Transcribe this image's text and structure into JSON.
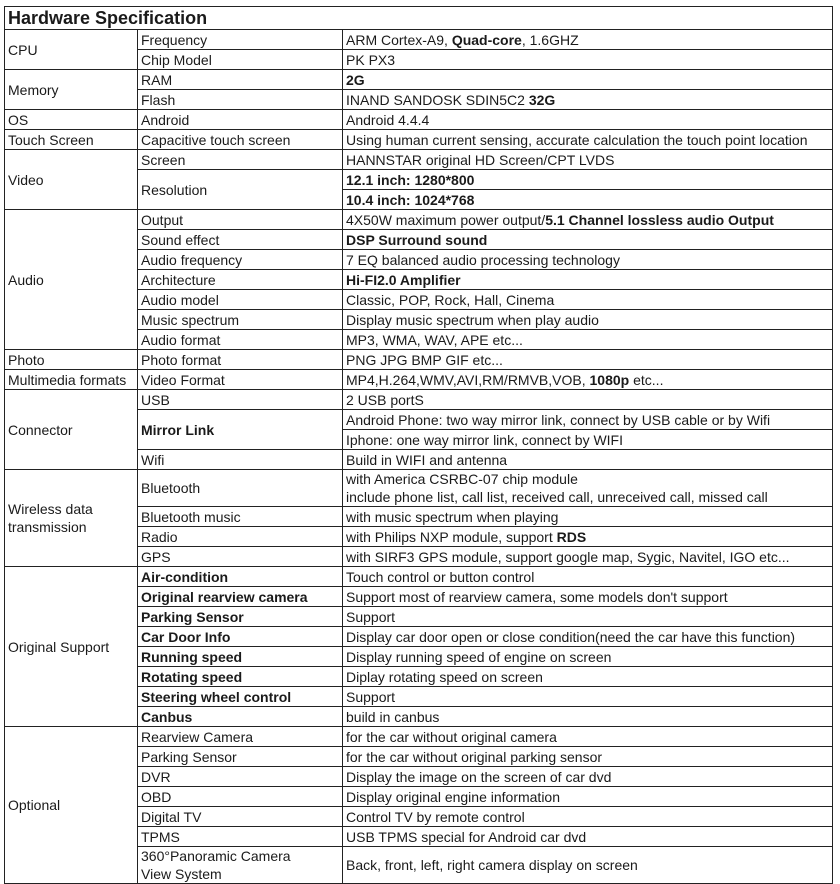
{
  "title": "Hardware Specification",
  "groups": [
    {
      "category": [
        "CPU"
      ],
      "rows": [
        {
          "label": [
            "Frequency"
          ],
          "cells": [
            [
              [
                {
                  "t": "ARM  Cortex-A9, "
                },
                {
                  "t": "Quad-core",
                  "b": true
                },
                {
                  "t": ", 1.6GHZ"
                }
              ]
            ]
          ]
        },
        {
          "label": [
            "Chip Model"
          ],
          "cells": [
            [
              [
                {
                  "t": "PK  PX3"
                }
              ]
            ]
          ]
        }
      ]
    },
    {
      "category": [
        "Memory"
      ],
      "rows": [
        {
          "label": [
            "RAM"
          ],
          "cells": [
            [
              [
                {
                  "t": "2G",
                  "b": true
                }
              ]
            ]
          ]
        },
        {
          "label": [
            "Flash"
          ],
          "cells": [
            [
              [
                {
                  "t": "INAND SANDOSK SDIN5C2 "
                },
                {
                  "t": "32G",
                  "b": true
                }
              ]
            ]
          ]
        }
      ]
    },
    {
      "category": [
        "OS"
      ],
      "rows": [
        {
          "label": [
            "Android"
          ],
          "cells": [
            [
              [
                {
                  "t": "Android 4.4.4"
                }
              ]
            ]
          ]
        }
      ]
    },
    {
      "category": [
        "Touch Screen"
      ],
      "rows": [
        {
          "label": [
            "Capacitive touch screen"
          ],
          "cells": [
            [
              [
                {
                  "t": "Using human current sensing, accurate calculation the touch point location"
                }
              ]
            ]
          ]
        }
      ]
    },
    {
      "category": [
        "Video"
      ],
      "rows": [
        {
          "label": [
            "Screen"
          ],
          "cells": [
            [
              [
                {
                  "t": "HANNSTAR original HD Screen/CPT LVDS"
                }
              ]
            ]
          ]
        },
        {
          "label": [
            "Resolution"
          ],
          "cells": [
            [
              [
                {
                  "t": "12.1 inch: 1280*800",
                  "b": true
                }
              ]
            ],
            [
              [
                {
                  "t": "10.4 inch: 1024*768",
                  "b": true
                }
              ]
            ]
          ]
        }
      ]
    },
    {
      "category": [
        "Audio"
      ],
      "rows": [
        {
          "label": [
            "Output"
          ],
          "cells": [
            [
              [
                {
                  "t": "4X50W maximum power output/"
                },
                {
                  "t": "5.1 Channel lossless audio Output",
                  "b": true
                }
              ]
            ]
          ]
        },
        {
          "label": [
            "Sound effect"
          ],
          "cells": [
            [
              [
                {
                  "t": "DSP Surround sound",
                  "b": true
                }
              ]
            ]
          ]
        },
        {
          "label": [
            "Audio frequency"
          ],
          "cells": [
            [
              [
                {
                  "t": "7 EQ balanced audio processing technology"
                }
              ]
            ]
          ]
        },
        {
          "label": [
            "Architecture"
          ],
          "cells": [
            [
              [
                {
                  "t": "Hi-FI2.0 Amplifier",
                  "b": true
                }
              ]
            ]
          ]
        },
        {
          "label": [
            "Audio model"
          ],
          "cells": [
            [
              [
                {
                  "t": "Classic, POP, Rock, Hall, Cinema"
                }
              ]
            ]
          ]
        },
        {
          "label": [
            "Music spectrum"
          ],
          "cells": [
            [
              [
                {
                  "t": "Display music spectrum when play audio"
                }
              ]
            ]
          ]
        },
        {
          "label": [
            "Audio format"
          ],
          "cells": [
            [
              [
                {
                  "t": "MP3, WMA, WAV, APE etc..."
                }
              ]
            ]
          ]
        }
      ]
    },
    {
      "category": [
        "Photo"
      ],
      "rows": [
        {
          "label": [
            "Photo format"
          ],
          "cells": [
            [
              [
                {
                  "t": "PNG JPG BMP GIF etc..."
                }
              ]
            ]
          ]
        }
      ]
    },
    {
      "category": [
        "Multimedia formats"
      ],
      "rows": [
        {
          "label": [
            "Video Format"
          ],
          "cells": [
            [
              [
                {
                  "t": "MP4,H.264,WMV,AVI,RM/RMVB,VOB, "
                },
                {
                  "t": "1080p",
                  "b": true
                },
                {
                  "t": " etc..."
                }
              ]
            ]
          ]
        }
      ]
    },
    {
      "category": [
        "Connector"
      ],
      "rows": [
        {
          "label": [
            "USB"
          ],
          "cells": [
            [
              [
                {
                  "t": "2 USB portS"
                }
              ]
            ]
          ]
        },
        {
          "label": [
            "Mirror Link"
          ],
          "label_bold": true,
          "cells": [
            [
              [
                {
                  "t": "Android Phone: two way mirror link, connect by USB cable or by Wifi"
                }
              ]
            ],
            [
              [
                {
                  "t": "Iphone: one way mirror link, connect by WIFI"
                }
              ]
            ]
          ]
        },
        {
          "label": [
            "Wifi"
          ],
          "cells": [
            [
              [
                {
                  "t": "Build in WIFI and antenna"
                }
              ]
            ]
          ]
        }
      ]
    },
    {
      "category": [
        "Wireless data",
        "transmission"
      ],
      "rows": [
        {
          "label": [
            "Bluetooth"
          ],
          "cells": [
            [
              [
                {
                  "t": "with America CSRBC-07 chip  module"
                }
              ],
              [
                {
                  "t": "include phone list, call list, received call, unreceived call, missed call"
                }
              ]
            ]
          ]
        },
        {
          "label": [
            "Bluetooth music"
          ],
          "cells": [
            [
              [
                {
                  "t": "with music spectrum when playing"
                }
              ]
            ]
          ]
        },
        {
          "label": [
            "Radio"
          ],
          "cells": [
            [
              [
                {
                  "t": "with Philips NXP module, support "
                },
                {
                  "t": "RDS",
                  "b": true
                }
              ]
            ]
          ]
        },
        {
          "label": [
            "GPS"
          ],
          "cells": [
            [
              [
                {
                  "t": "with SIRF3 GPS module, support google map, Sygic, Navitel, IGO etc..."
                }
              ]
            ]
          ]
        }
      ]
    },
    {
      "category": [
        "Original Support"
      ],
      "rows": [
        {
          "label": [
            "Air-condition"
          ],
          "label_bold": true,
          "cells": [
            [
              [
                {
                  "t": "Touch control or button control"
                }
              ]
            ]
          ]
        },
        {
          "label": [
            "Original rearview camera"
          ],
          "label_bold": true,
          "cells": [
            [
              [
                {
                  "t": "Support most of rearview camera, some models don't support"
                }
              ]
            ]
          ]
        },
        {
          "label": [
            "Parking Sensor"
          ],
          "label_bold": true,
          "cells": [
            [
              [
                {
                  "t": "Support"
                }
              ]
            ]
          ]
        },
        {
          "label": [
            "Car Door Info"
          ],
          "label_bold": true,
          "cells": [
            [
              [
                {
                  "t": "Display car door open or close condition(need the car have this function)"
                }
              ]
            ]
          ]
        },
        {
          "label": [
            "Running speed"
          ],
          "label_bold": true,
          "cells": [
            [
              [
                {
                  "t": "Display running speed of engine on screen"
                }
              ]
            ]
          ]
        },
        {
          "label": [
            "Rotating speed"
          ],
          "label_bold": true,
          "cells": [
            [
              [
                {
                  "t": "Diplay  rotating speed on screen"
                }
              ]
            ]
          ]
        },
        {
          "label": [
            "Steering wheel control"
          ],
          "label_bold": true,
          "cells": [
            [
              [
                {
                  "t": "Support"
                }
              ]
            ]
          ]
        },
        {
          "label": [
            "Canbus"
          ],
          "label_bold": true,
          "cells": [
            [
              [
                {
                  "t": "build in canbus"
                }
              ]
            ]
          ]
        }
      ]
    },
    {
      "category": [
        "Optional"
      ],
      "rows": [
        {
          "label": [
            "Rearview Camera"
          ],
          "cells": [
            [
              [
                {
                  "t": "for the car without original camera"
                }
              ]
            ]
          ]
        },
        {
          "label": [
            "Parking Sensor"
          ],
          "cells": [
            [
              [
                {
                  "t": "for the car without original parking sensor"
                }
              ]
            ]
          ]
        },
        {
          "label": [
            "DVR"
          ],
          "cells": [
            [
              [
                {
                  "t": "Display the image on the screen of car dvd"
                }
              ]
            ]
          ]
        },
        {
          "label": [
            "OBD"
          ],
          "cells": [
            [
              [
                {
                  "t": "Display original engine information"
                }
              ]
            ]
          ]
        },
        {
          "label": [
            "Digital TV"
          ],
          "cells": [
            [
              [
                {
                  "t": "Control TV by remote control"
                }
              ]
            ]
          ]
        },
        {
          "label": [
            "TPMS"
          ],
          "cells": [
            [
              [
                {
                  "t": "USB TPMS special for Android car dvd"
                }
              ]
            ]
          ]
        },
        {
          "label": [
            "360°Panoramic Camera",
            "View System"
          ],
          "cells": [
            [
              [
                {
                  "t": "Back, front, left, right camera display on screen"
                }
              ]
            ]
          ]
        }
      ]
    }
  ]
}
